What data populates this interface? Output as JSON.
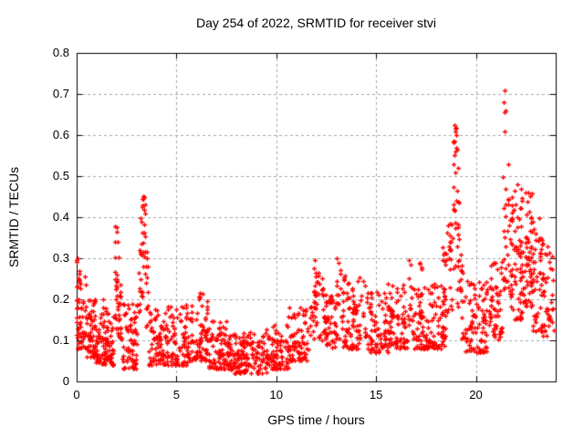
{
  "chart_data": {
    "type": "scatter",
    "title": "Day 254 of 2022, SRMTID for receiver stvi",
    "xlabel": "GPS time / hours",
    "ylabel": "SRMTID / TECUs",
    "xlim": [
      0,
      24
    ],
    "ylim": [
      0,
      0.8
    ],
    "xticks": [
      {
        "value": 0,
        "label": "0"
      },
      {
        "value": 5,
        "label": "5"
      },
      {
        "value": 10,
        "label": "10"
      },
      {
        "value": 15,
        "label": "15"
      },
      {
        "value": 20,
        "label": "20"
      }
    ],
    "yticks": [
      {
        "value": 0.0,
        "label": "0"
      },
      {
        "value": 0.1,
        "label": "0.1"
      },
      {
        "value": 0.2,
        "label": "0.2"
      },
      {
        "value": 0.3,
        "label": "0.3"
      },
      {
        "value": 0.4,
        "label": "0.4"
      },
      {
        "value": 0.5,
        "label": "0.5"
      },
      {
        "value": 0.6,
        "label": "0.6"
      },
      {
        "value": 0.7,
        "label": "0.7"
      },
      {
        "value": 0.8,
        "label": "0.8"
      }
    ],
    "grid": true,
    "legend": "none",
    "series_name": "SRMTID",
    "marker": {
      "shape": "plus",
      "color": "#ff0000",
      "size": 5,
      "stroke_width": 1.3
    },
    "seed": 2542022,
    "envelope_note": "segments [t_start, t_end, n_points, v_min, v_max, skew_power] read from the plotted point cloud",
    "envelope": [
      [
        0.0,
        0.08,
        16,
        0.1,
        0.3,
        1.0
      ],
      [
        0.05,
        0.45,
        40,
        0.08,
        0.27,
        1.8
      ],
      [
        0.45,
        0.95,
        55,
        0.06,
        0.2,
        1.6
      ],
      [
        0.85,
        0.95,
        8,
        0.12,
        0.23,
        1.0
      ],
      [
        0.95,
        1.85,
        90,
        0.04,
        0.17,
        1.6
      ],
      [
        1.3,
        1.5,
        6,
        0.12,
        0.2,
        1.0
      ],
      [
        1.9,
        2.05,
        22,
        0.12,
        0.38,
        1.1
      ],
      [
        2.05,
        2.25,
        20,
        0.1,
        0.31,
        1.2
      ],
      [
        2.25,
        3.05,
        70,
        0.03,
        0.19,
        1.7
      ],
      [
        3.1,
        3.3,
        18,
        0.15,
        0.4,
        1.1
      ],
      [
        3.3,
        3.45,
        16,
        0.2,
        0.45,
        1.0
      ],
      [
        3.45,
        3.6,
        12,
        0.12,
        0.33,
        1.2
      ],
      [
        3.6,
        4.5,
        75,
        0.04,
        0.18,
        1.7
      ],
      [
        4.5,
        5.6,
        90,
        0.04,
        0.19,
        1.6
      ],
      [
        5.6,
        6.6,
        85,
        0.05,
        0.22,
        1.7
      ],
      [
        6.6,
        7.6,
        85,
        0.03,
        0.15,
        1.6
      ],
      [
        7.6,
        9.5,
        150,
        0.02,
        0.12,
        1.5
      ],
      [
        9.5,
        10.6,
        85,
        0.03,
        0.14,
        1.5
      ],
      [
        10.6,
        11.6,
        80,
        0.05,
        0.18,
        1.6
      ],
      [
        11.7,
        11.9,
        14,
        0.1,
        0.25,
        1.1
      ],
      [
        11.9,
        12.1,
        16,
        0.12,
        0.3,
        1.0
      ],
      [
        12.1,
        12.35,
        14,
        0.1,
        0.27,
        1.1
      ],
      [
        12.35,
        13.0,
        55,
        0.08,
        0.22,
        1.5
      ],
      [
        13.0,
        13.3,
        18,
        0.1,
        0.3,
        1.2
      ],
      [
        13.3,
        14.6,
        95,
        0.08,
        0.26,
        1.7
      ],
      [
        14.6,
        15.6,
        75,
        0.07,
        0.22,
        1.6
      ],
      [
        15.6,
        16.6,
        80,
        0.08,
        0.24,
        1.6
      ],
      [
        16.6,
        16.8,
        10,
        0.12,
        0.29,
        1.0
      ],
      [
        16.8,
        18.5,
        130,
        0.08,
        0.24,
        1.6
      ],
      [
        17.15,
        17.3,
        8,
        0.15,
        0.29,
        1.0
      ],
      [
        18.3,
        18.5,
        12,
        0.15,
        0.34,
        1.0
      ],
      [
        18.55,
        18.8,
        20,
        0.15,
        0.4,
        1.2
      ],
      [
        18.85,
        19.05,
        22,
        0.25,
        0.62,
        1.0
      ],
      [
        19.05,
        19.25,
        18,
        0.18,
        0.52,
        1.1
      ],
      [
        19.25,
        19.45,
        14,
        0.1,
        0.3,
        1.2
      ],
      [
        19.45,
        20.6,
        90,
        0.07,
        0.25,
        1.6
      ],
      [
        20.6,
        21.3,
        55,
        0.1,
        0.3,
        1.4
      ],
      [
        21.35,
        21.55,
        16,
        0.22,
        0.5,
        1.0
      ],
      [
        21.55,
        21.75,
        14,
        0.18,
        0.45,
        1.1
      ],
      [
        21.75,
        22.35,
        70,
        0.15,
        0.45,
        1.2
      ],
      [
        22.35,
        22.85,
        60,
        0.18,
        0.46,
        1.2
      ],
      [
        22.85,
        23.35,
        45,
        0.12,
        0.4,
        1.3
      ],
      [
        23.35,
        23.9,
        40,
        0.1,
        0.33,
        1.3
      ]
    ],
    "outliers": [
      [
        0.0,
        0.295
      ],
      [
        2.0,
        0.375
      ],
      [
        2.02,
        0.365
      ],
      [
        3.32,
        0.452
      ],
      [
        3.35,
        0.445
      ],
      [
        3.3,
        0.43
      ],
      [
        11.95,
        0.295
      ],
      [
        13.05,
        0.3
      ],
      [
        16.65,
        0.295
      ],
      [
        17.2,
        0.29
      ],
      [
        18.93,
        0.625
      ],
      [
        18.97,
        0.615
      ],
      [
        19.0,
        0.6
      ],
      [
        18.9,
        0.585
      ],
      [
        19.05,
        0.565
      ],
      [
        19.1,
        0.52
      ],
      [
        21.43,
        0.71
      ],
      [
        21.4,
        0.68
      ],
      [
        21.47,
        0.66
      ],
      [
        21.45,
        0.655
      ],
      [
        21.42,
        0.61
      ],
      [
        21.6,
        0.53
      ],
      [
        22.1,
        0.48
      ],
      [
        22.25,
        0.47
      ],
      [
        21.95,
        0.465
      ],
      [
        22.5,
        0.46
      ]
    ]
  },
  "colors": {
    "background": "#ffffff",
    "axis": "#000000",
    "grid": "#a6a6a6",
    "marker": "#ff0000",
    "text": "#000000"
  }
}
